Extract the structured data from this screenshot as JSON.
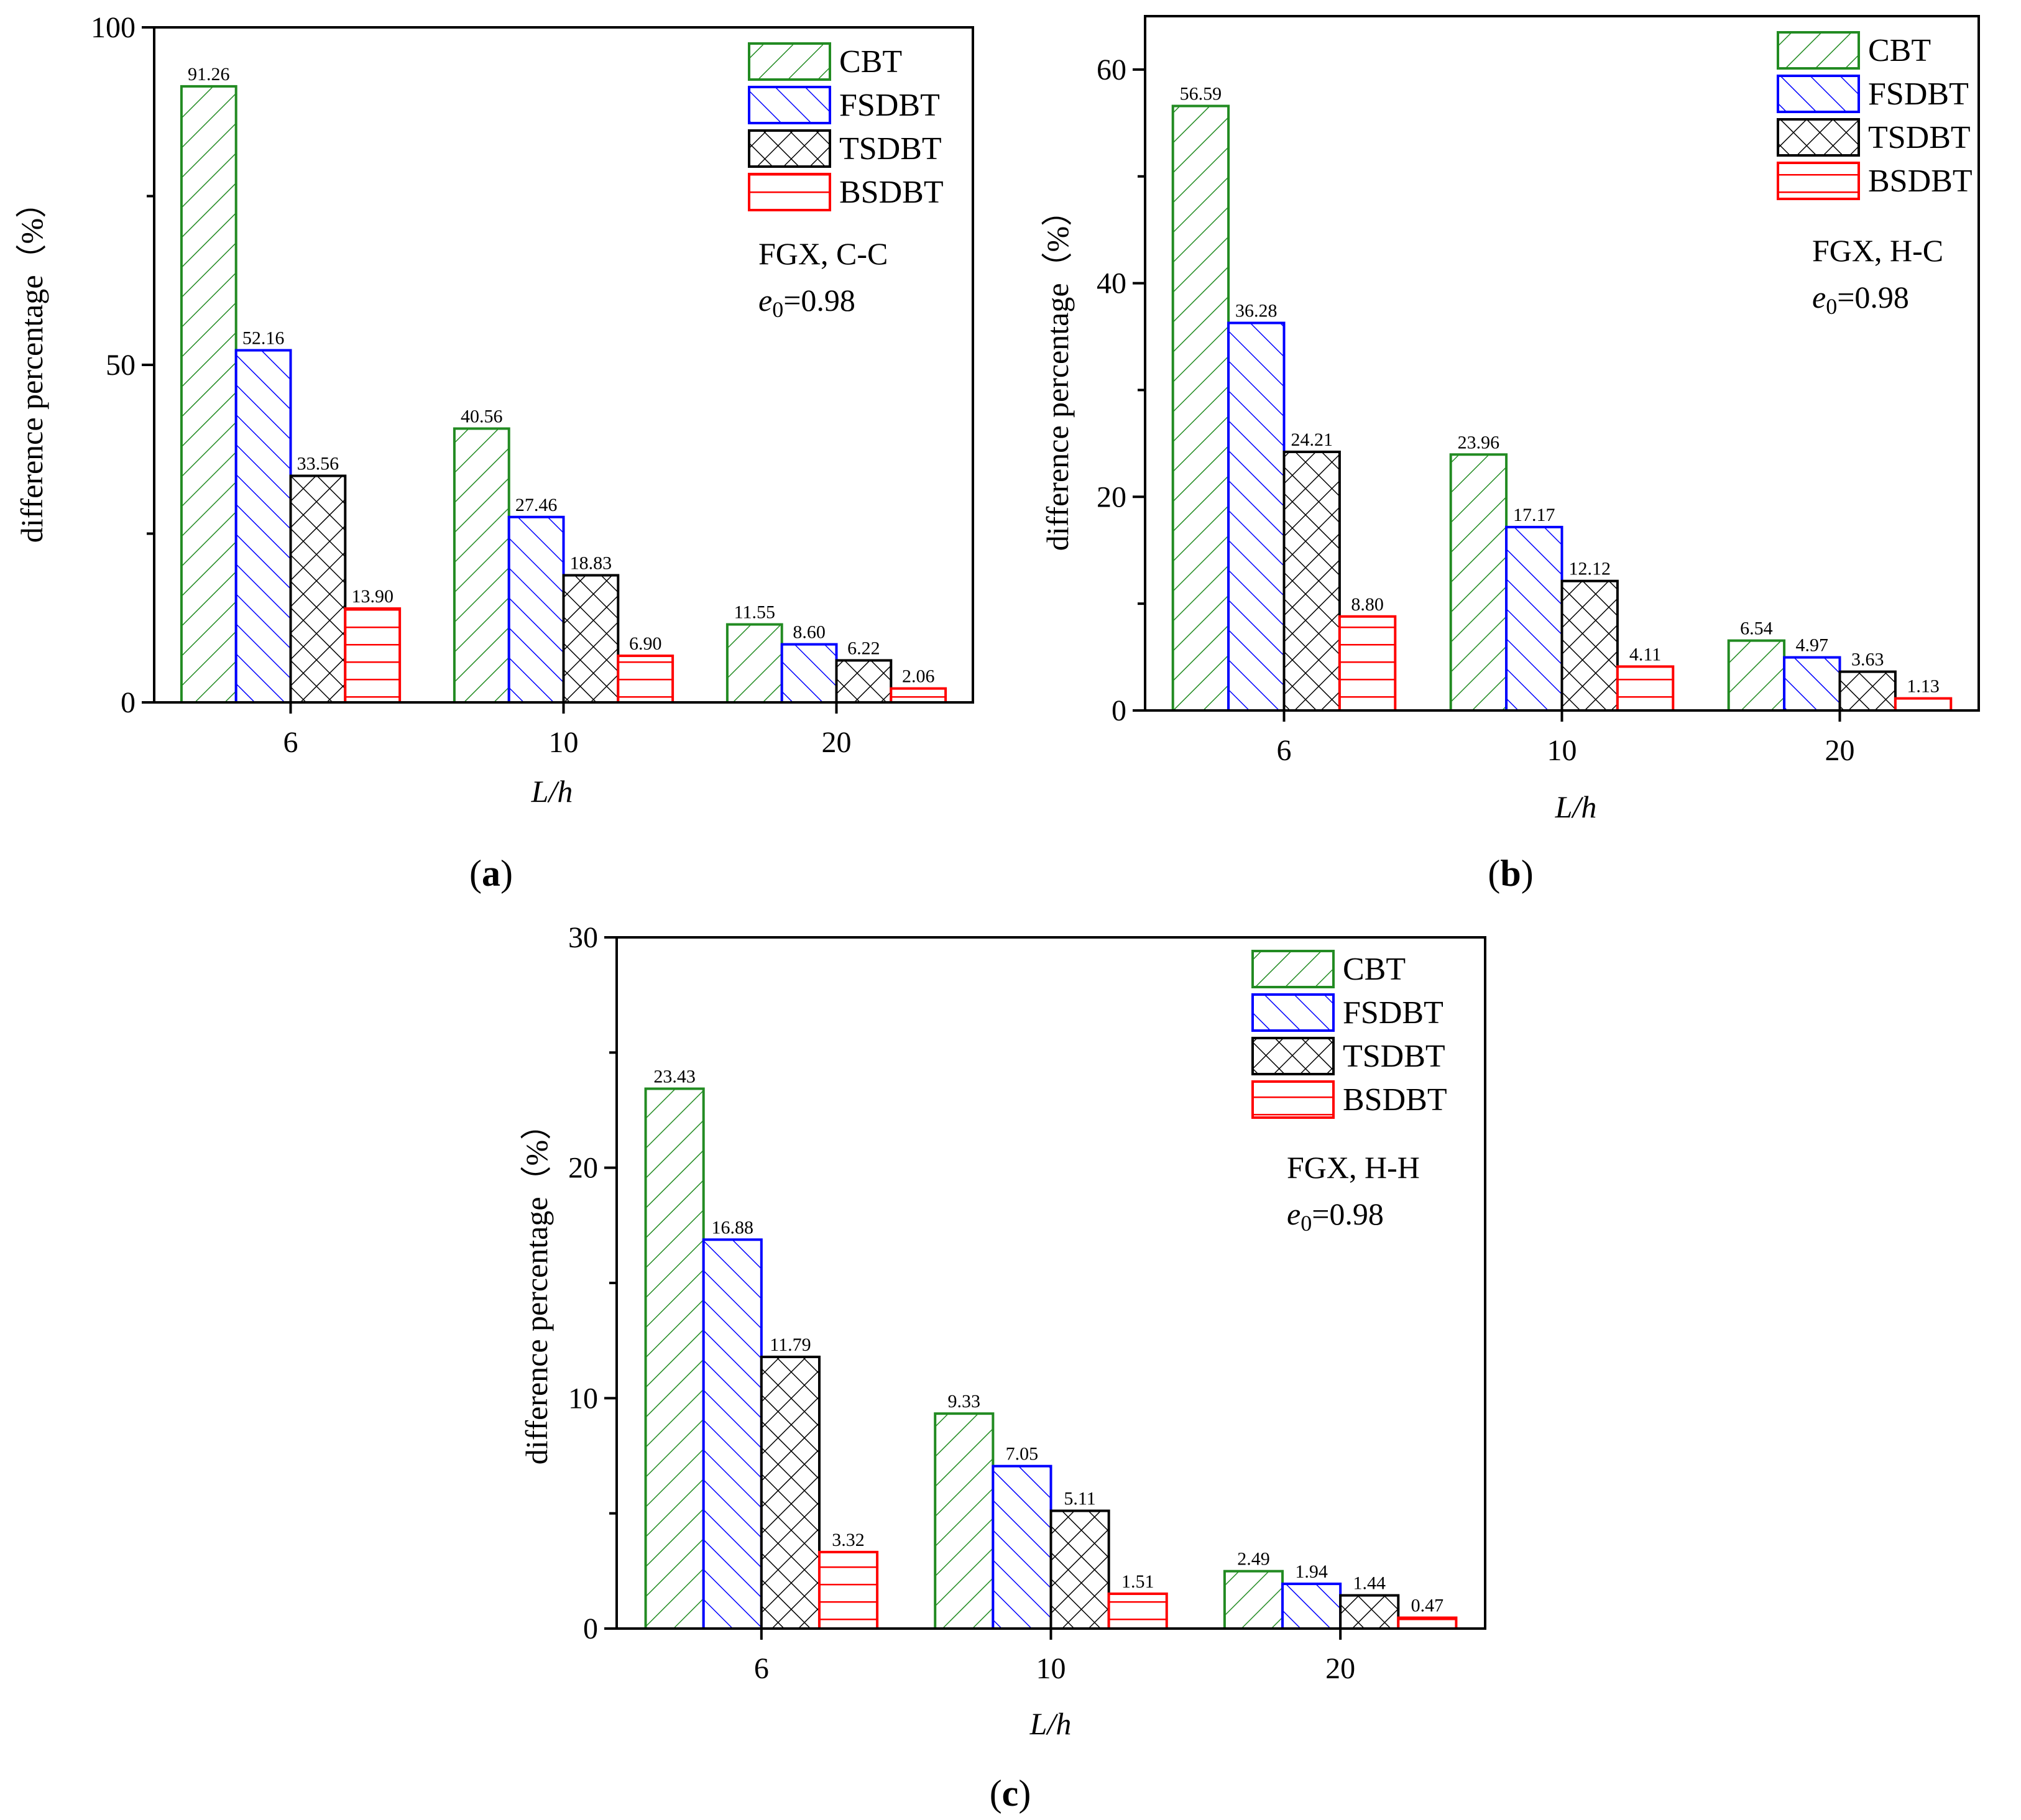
{
  "panels": [
    {
      "label": "a",
      "annotation_line1": "FGX, C-C",
      "annotation_e": "e",
      "annotation_sub": "0",
      "annotation_val": "=0.98"
    },
    {
      "label": "b",
      "annotation_line1": "FGX, H-C",
      "annotation_e": "e",
      "annotation_sub": "0",
      "annotation_val": "=0.98"
    },
    {
      "label": "c",
      "annotation_line1": "FGX, H-H",
      "annotation_e": "e",
      "annotation_sub": "0",
      "annotation_val": "=0.98"
    }
  ],
  "legend_names": [
    "CBT",
    "FSDBT",
    "TSDBT",
    "BSDBT"
  ],
  "colors": {
    "CBT": "#228B22",
    "FSDBT": "#0000FF",
    "TSDBT": "#000000",
    "BSDBT": "#FF0000"
  },
  "chart_data": [
    {
      "type": "bar",
      "categories": [
        "6",
        "10",
        "20"
      ],
      "series": [
        {
          "name": "CBT",
          "values": [
            91.26,
            40.56,
            11.55
          ],
          "labels": [
            "91.26",
            "40.56",
            "11.55"
          ]
        },
        {
          "name": "FSDBT",
          "values": [
            52.16,
            27.46,
            8.6
          ],
          "labels": [
            "52.16",
            "27.46",
            "8.60"
          ]
        },
        {
          "name": "TSDBT",
          "values": [
            33.56,
            18.83,
            6.22
          ],
          "labels": [
            "33.56",
            "18.83",
            "6.22"
          ]
        },
        {
          "name": "BSDBT",
          "values": [
            13.9,
            6.9,
            2.06
          ],
          "labels": [
            "13.90",
            "6.90",
            "2.06"
          ]
        }
      ],
      "xlabel": "L/h",
      "ylabel": "difference percentage（%）",
      "ylim": [
        0,
        100
      ],
      "yticks": [
        "0",
        "50",
        "100"
      ],
      "legend": "top-right"
    },
    {
      "type": "bar",
      "categories": [
        "6",
        "10",
        "20"
      ],
      "series": [
        {
          "name": "CBT",
          "values": [
            56.59,
            23.96,
            6.54
          ],
          "labels": [
            "56.59",
            "23.96",
            "6.54"
          ]
        },
        {
          "name": "FSDBT",
          "values": [
            36.28,
            17.17,
            4.97
          ],
          "labels": [
            "36.28",
            "17.17",
            "4.97"
          ]
        },
        {
          "name": "TSDBT",
          "values": [
            24.21,
            12.12,
            3.63
          ],
          "labels": [
            "24.21",
            "12.12",
            "3.63"
          ]
        },
        {
          "name": "BSDBT",
          "values": [
            8.8,
            4.11,
            1.13
          ],
          "labels": [
            "8.80",
            "4.11",
            "1.13"
          ]
        }
      ],
      "xlabel": "L/h",
      "ylabel": "difference percentage（%）",
      "ylim": [
        0,
        65
      ],
      "yticks": [
        "0",
        "20",
        "40",
        "60"
      ],
      "legend": "top-right"
    },
    {
      "type": "bar",
      "categories": [
        "6",
        "10",
        "20"
      ],
      "series": [
        {
          "name": "CBT",
          "values": [
            23.43,
            9.33,
            2.49
          ],
          "labels": [
            "23.43",
            "9.33",
            "2.49"
          ]
        },
        {
          "name": "FSDBT",
          "values": [
            16.88,
            7.05,
            1.94
          ],
          "labels": [
            "16.88",
            "7.05",
            "1.94"
          ]
        },
        {
          "name": "TSDBT",
          "values": [
            11.79,
            5.11,
            1.44
          ],
          "labels": [
            "11.79",
            "5.11",
            "1.44"
          ]
        },
        {
          "name": "BSDBT",
          "values": [
            3.32,
            1.51,
            0.47
          ],
          "labels": [
            "3.32",
            "1.51",
            "0.47"
          ]
        }
      ],
      "xlabel": "L/h",
      "ylabel": "difference percentage（%）",
      "ylim": [
        0,
        30
      ],
      "yticks": [
        "0",
        "10",
        "20",
        "30"
      ],
      "legend": "top-right"
    }
  ]
}
